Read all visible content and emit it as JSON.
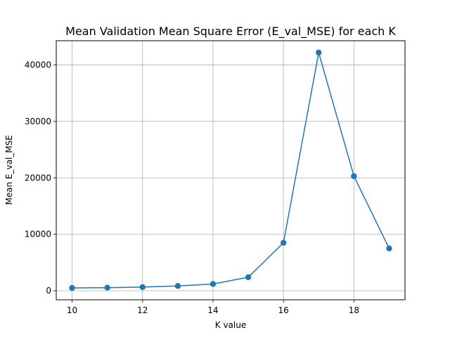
{
  "chart_data": {
    "type": "line",
    "title": "Mean Validation Mean Square Error (E_val_MSE) for each K",
    "xlabel": "K value",
    "ylabel": "Mean E_val_MSE",
    "x": [
      10,
      11,
      12,
      13,
      14,
      15,
      16,
      17,
      18,
      19
    ],
    "series": [
      {
        "values": [
          500,
          550,
          650,
          850,
          1200,
          2400,
          8500,
          42200,
          20300,
          7500
        ],
        "color": "#1f77b4",
        "marker": "circle"
      }
    ],
    "xlim": [
      9.55,
      19.45
    ],
    "ylim": [
      -1600,
      44300
    ],
    "xticks": [
      10,
      12,
      14,
      16,
      18
    ],
    "yticks": [
      0,
      10000,
      20000,
      30000,
      40000
    ],
    "grid": true,
    "legend": "none"
  }
}
